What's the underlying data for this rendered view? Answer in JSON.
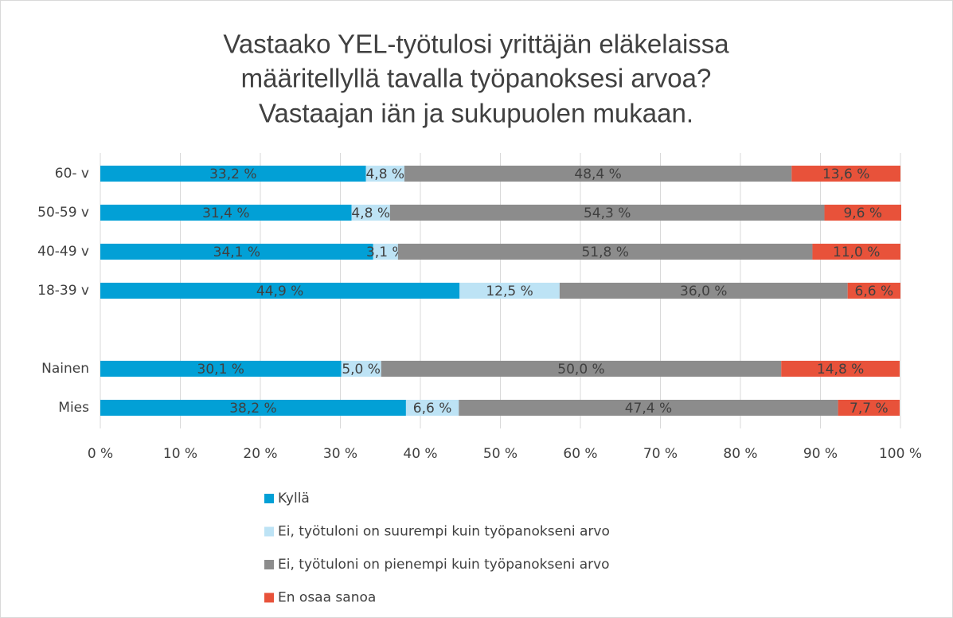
{
  "chart_data": {
    "type": "stacked-barh",
    "title": [
      "Vastaako YEL-työtulosi yrittäjän eläkelaissa",
      "määritellyllä tavalla työpanoksesi arvoa?",
      "Vastaajan iän ja sukupuolen mukaan."
    ],
    "categories": [
      "60- v",
      "50-59 v",
      "40-49 v",
      "18-39 v",
      null,
      "Nainen",
      "Mies"
    ],
    "series": [
      {
        "name": "Kyllä",
        "color": "#02a0d6",
        "values": [
          33.2,
          31.4,
          34.1,
          44.9,
          null,
          30.1,
          38.2
        ],
        "value_labels": [
          "33,2 %",
          "31,4 %",
          "34,1 %",
          "44,9 %",
          null,
          "30,1 %",
          "38,2 %"
        ]
      },
      {
        "name": "Ei, työtuloni on suurempi kuin työpanokseni arvo",
        "color": "#bde3f5",
        "values": [
          4.8,
          4.8,
          3.1,
          12.5,
          null,
          5.0,
          6.6
        ],
        "value_labels": [
          "4,8 %",
          "4,8 %",
          "3,1 %",
          "12,5 %",
          null,
          "5,0 %",
          "6,6 %"
        ]
      },
      {
        "name": "Ei, työtuloni on pienempi kuin työpanokseni arvo",
        "color": "#8c8c8c",
        "values": [
          48.4,
          54.3,
          51.8,
          36.0,
          null,
          50.0,
          47.4
        ],
        "value_labels": [
          "48,4 %",
          "54,3 %",
          "51,8 %",
          "36,0 %",
          null,
          "50,0 %",
          "47,4 %"
        ]
      },
      {
        "name": "En osaa sanoa",
        "color": "#e8523a",
        "values": [
          13.6,
          9.6,
          11.0,
          6.6,
          null,
          14.8,
          7.7
        ],
        "value_labels": [
          "13,6 %",
          "9,6 %",
          "11,0 %",
          "6,6 %",
          null,
          "14,8 %",
          "7,7 %"
        ]
      }
    ],
    "xlim": [
      0,
      100
    ],
    "xticks": [
      {
        "value": 0,
        "label": "0 %"
      },
      {
        "value": 10,
        "label": "10 %"
      },
      {
        "value": 20,
        "label": "20 %"
      },
      {
        "value": 30,
        "label": "30 %"
      },
      {
        "value": 40,
        "label": "40 %"
      },
      {
        "value": 50,
        "label": "50 %"
      },
      {
        "value": 60,
        "label": "60 %"
      },
      {
        "value": 70,
        "label": "70 %"
      },
      {
        "value": 80,
        "label": "80 %"
      },
      {
        "value": 90,
        "label": "90 %"
      },
      {
        "value": 100,
        "label": "100 %"
      }
    ],
    "grid": true,
    "legend": "bottom"
  }
}
